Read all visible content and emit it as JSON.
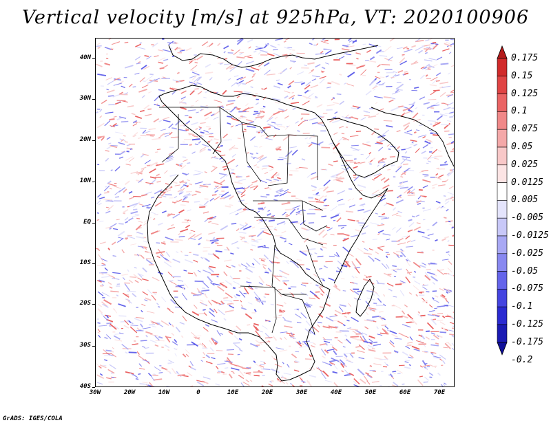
{
  "title": "Vertical velocity [m/s] at 925hPa, VT: 2020100906",
  "footer": "GrADS: IGES/COLA",
  "map": {
    "lat_labels": [
      "40N",
      "30N",
      "20N",
      "10N",
      "EQ",
      "10S",
      "20S",
      "30S",
      "40S"
    ],
    "lon_labels": [
      "30W",
      "20W",
      "10W",
      "0",
      "10E",
      "20E",
      "30E",
      "40E",
      "50E",
      "60E",
      "70E"
    ],
    "extent": {
      "lon_min": -30,
      "lon_max": 75,
      "lat_min": -40,
      "lat_max": 45
    }
  },
  "colorbar": {
    "colors": [
      "#b31a1a",
      "#d12a2a",
      "#e04444",
      "#ea6464",
      "#f08888",
      "#f4a8a8",
      "#f8c8c8",
      "#fce4e4",
      "#ffffff",
      "#e4e4fc",
      "#c8c8f8",
      "#a8a8f4",
      "#8888f0",
      "#6464ea",
      "#4444e0",
      "#2a2ad1",
      "#1a1ab3",
      "#0f0f99"
    ],
    "labels": [
      "0.175",
      "0.15",
      "0.125",
      "0.1",
      "0.075",
      "0.05",
      "0.025",
      "0.0125",
      "0.005",
      "-0.005",
      "-0.0125",
      "-0.025",
      "-0.05",
      "-0.075",
      "-0.1",
      "-0.125",
      "-0.175",
      "-0.2"
    ]
  },
  "legend_colors": {
    "positive": "#e04444",
    "negative": "#4444e0"
  }
}
